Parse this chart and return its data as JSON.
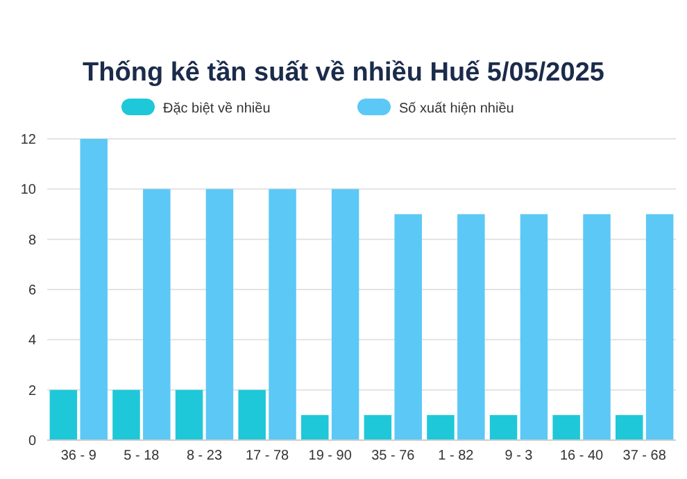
{
  "chart_data": {
    "type": "bar",
    "title": "Thống kê tần suất về nhiều Huế 5/05/2025",
    "categories": [
      "36 - 9",
      "5 - 18",
      "8 - 23",
      "17 - 78",
      "19 - 90",
      "35 - 76",
      "1 - 82",
      "9 - 3",
      "16 - 40",
      "37 - 68"
    ],
    "series": [
      {
        "name": "Đặc biệt về nhiều",
        "color": "#1ec8d8",
        "values": [
          2,
          2,
          2,
          2,
          1,
          1,
          1,
          1,
          1,
          1
        ]
      },
      {
        "name": "Số xuất hiện nhiều",
        "color": "#5cc8f5",
        "values": [
          12,
          10,
          10,
          10,
          10,
          9,
          9,
          9,
          9,
          9
        ]
      }
    ],
    "ylim": [
      0,
      12
    ],
    "yticks": [
      0,
      2,
      4,
      6,
      8,
      10,
      12
    ],
    "grid": "y",
    "legend": "top"
  }
}
